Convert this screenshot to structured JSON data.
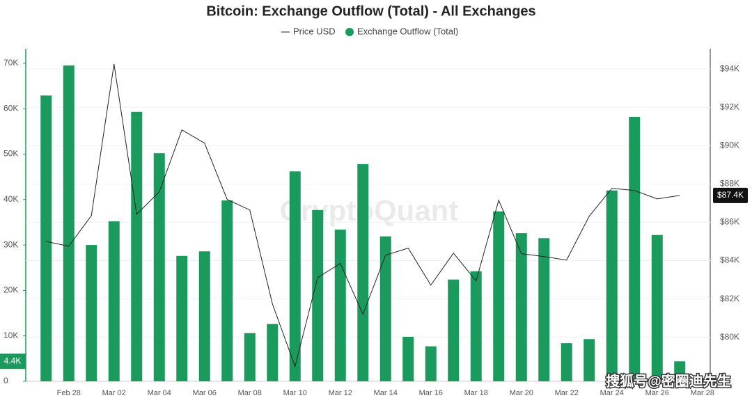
{
  "chart_data": {
    "type": "bar-line",
    "title": "Bitcoin: Exchange Outflow (Total) - All Exchanges",
    "watermark": "CryptoQuant",
    "source_mark": "搜狐号@密圈迪先生",
    "categories": [
      null,
      "Feb 28",
      null,
      "Mar 02",
      null,
      "Mar 04",
      null,
      "Mar 06",
      null,
      "Mar 08",
      null,
      "Mar 10",
      null,
      "Mar 12",
      null,
      "Mar 14",
      null,
      "Mar 16",
      null,
      "Mar 18",
      null,
      "Mar 20",
      null,
      "Mar 22",
      null,
      "Mar 24",
      null,
      "Mar 26",
      null,
      "Mar 28"
    ],
    "series": [
      {
        "name": "Price USD",
        "type": "line",
        "axis": "y2",
        "color": "#222222",
        "values": [
          85000,
          84750,
          86350,
          94260,
          86420,
          87590,
          90820,
          90130,
          87190,
          86640,
          81740,
          78480,
          83120,
          83850,
          81200,
          84280,
          84650,
          82720,
          84390,
          82940,
          87150,
          84360,
          84210,
          84030,
          86320,
          87770,
          87660,
          87220,
          87400,
          null
        ],
        "value_labels": [
          null,
          null,
          null,
          null,
          null,
          null,
          null,
          null,
          null,
          null,
          null,
          null,
          null,
          null,
          null,
          null,
          null,
          null,
          null,
          null,
          null,
          null,
          null,
          null,
          null,
          null,
          null,
          null,
          "$87.4K",
          null
        ]
      },
      {
        "name": "Exchange Outflow (Total)",
        "type": "bar",
        "color": "#1a9a5c",
        "values": [
          62900,
          69500,
          30000,
          35200,
          59300,
          50200,
          27600,
          28600,
          39800,
          10600,
          12600,
          46200,
          37700,
          33400,
          47800,
          31900,
          9800,
          7700,
          22400,
          24200,
          37400,
          32600,
          31500,
          8400,
          9300,
          42000,
          58200,
          32200,
          4400,
          null
        ],
        "value_labels": [
          null,
          null,
          null,
          null,
          null,
          null,
          null,
          null,
          null,
          null,
          null,
          null,
          null,
          null,
          null,
          null,
          null,
          null,
          null,
          null,
          null,
          null,
          null,
          null,
          null,
          null,
          null,
          null,
          "4.4K",
          null
        ]
      }
    ],
    "ylim": [
      0,
      73200
    ],
    "yticks": [
      0,
      {
        "value": 10000,
        "label": "10K"
      },
      {
        "value": 20000,
        "label": "20K"
      },
      {
        "value": 30000,
        "label": "30K"
      },
      {
        "value": 40000,
        "label": "40K"
      },
      {
        "value": 50000,
        "label": "50K"
      },
      {
        "value": 60000,
        "label": "60K"
      },
      {
        "value": 70000,
        "label": "70K"
      }
    ],
    "y2lim": [
      77700,
      95060
    ],
    "y2ticks": [
      {
        "value": 80000,
        "label": "$80K"
      },
      {
        "value": 82000,
        "label": "$82K"
      },
      {
        "value": 84000,
        "label": "$84K"
      },
      {
        "value": 86000,
        "label": "$86K"
      },
      {
        "value": 88000,
        "label": "$88K"
      },
      {
        "value": 90000,
        "label": "$90K"
      },
      {
        "value": 92000,
        "label": "$92K"
      },
      {
        "value": 94000,
        "label": "$94K"
      }
    ],
    "grid": true
  }
}
